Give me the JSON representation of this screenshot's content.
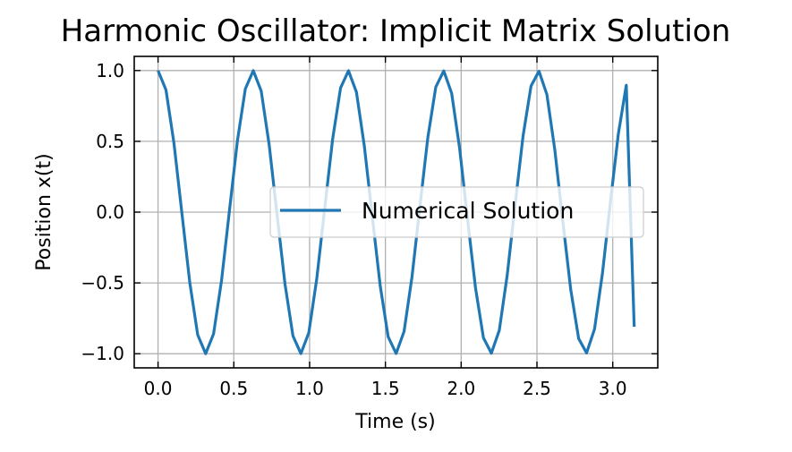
{
  "chart_data": {
    "type": "line",
    "title": "Harmonic Oscillator: Implicit Matrix Solution",
    "xlabel": "Time (s)",
    "ylabel": "Position x(t)",
    "xlim": [
      -0.157,
      3.297
    ],
    "ylim": [
      -1.1,
      1.1
    ],
    "xticks": [
      0.0,
      0.5,
      1.0,
      1.5,
      2.0,
      2.5,
      3.0
    ],
    "xtick_labels": [
      "0.0",
      "0.5",
      "1.0",
      "1.5",
      "2.0",
      "2.5",
      "3.0"
    ],
    "yticks": [
      1.0,
      0.5,
      0.0,
      -0.5,
      -1.0
    ],
    "ytick_labels": [
      "1.0",
      "0.5",
      "0.0",
      "−0.5",
      "−1.0"
    ],
    "grid": true,
    "legend_position": "center-right",
    "x": [
      0.0,
      0.0524,
      0.1047,
      0.1571,
      0.2094,
      0.2618,
      0.3142,
      0.3665,
      0.4189,
      0.4712,
      0.5236,
      0.576,
      0.6283,
      0.6807,
      0.733,
      0.7854,
      0.8378,
      0.8901,
      0.9425,
      0.9948,
      1.0472,
      1.0996,
      1.1519,
      1.2043,
      1.2566,
      1.309,
      1.3614,
      1.4137,
      1.4661,
      1.5184,
      1.5708,
      1.6232,
      1.6755,
      1.7279,
      1.7802,
      1.8326,
      1.885,
      1.9373,
      1.9897,
      2.042,
      2.0944,
      2.1468,
      2.1991,
      2.2515,
      2.3038,
      2.3562,
      2.4086,
      2.4609,
      2.5133,
      2.5656,
      2.618,
      2.6704,
      2.7227,
      2.7751,
      2.8274,
      2.8798,
      2.9322,
      2.9845,
      3.0369,
      3.0892,
      3.1416
    ],
    "series": [
      {
        "name": "Numerical Solution",
        "color": "#1f77b4",
        "values": [
          1.0,
          0.8632,
          0.4903,
          -0.0037,
          -0.4967,
          -0.8669,
          -0.9999,
          -0.8594,
          -0.4839,
          0.0111,
          0.503,
          0.8705,
          0.9997,
          0.8555,
          0.4775,
          -0.0185,
          -0.5093,
          -0.874,
          -0.9993,
          -0.8515,
          -0.471,
          0.0259,
          0.5155,
          0.8774,
          0.9988,
          0.8475,
          0.4645,
          -0.0332,
          -0.5217,
          -0.8808,
          -0.9982,
          -0.8433,
          -0.458,
          0.0406,
          0.5279,
          0.884,
          0.9975,
          0.8391,
          0.4514,
          -0.048,
          -0.534,
          -0.8872,
          -0.9966,
          -0.8348,
          -0.4448,
          0.0553,
          0.54,
          0.8903,
          0.9957,
          0.8305,
          0.4381,
          -0.0627,
          -0.546,
          -0.8933,
          -0.9946,
          -0.826,
          -0.4314,
          0.07,
          0.552,
          0.8962,
          -0.81
        ]
      }
    ]
  }
}
